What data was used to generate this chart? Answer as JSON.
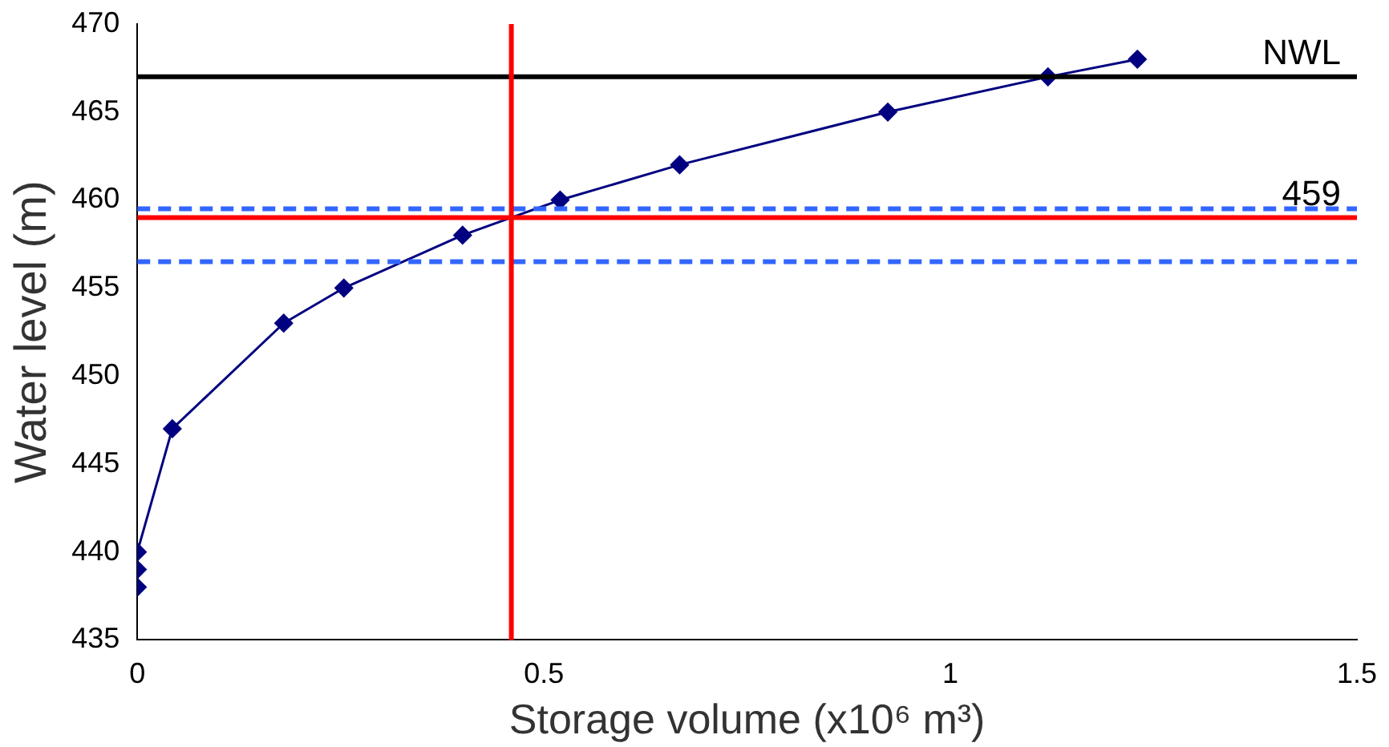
{
  "chart_data": {
    "type": "line",
    "xlabel": "Storage volume (x10⁶ m³)",
    "ylabel": "Water level (m)",
    "x": [
      0,
      0,
      0,
      0.043,
      0.18,
      0.254,
      0.4,
      0.52,
      0.667,
      0.923,
      1.12,
      1.23
    ],
    "series": [
      {
        "color": "#000080",
        "values": [
          438,
          439,
          440,
          447,
          453,
          455,
          458,
          460,
          462,
          465,
          467,
          468
        ]
      }
    ],
    "xlim": [
      0,
      1.5
    ],
    "xticks": [
      0,
      0.5,
      1,
      1.5
    ],
    "ylim": [
      435,
      470
    ],
    "yticks": [
      435,
      440,
      445,
      450,
      455,
      460,
      465,
      470
    ],
    "grid": false,
    "legend": false,
    "marker": "diamond",
    "line_style": "solid",
    "ref_lines": [
      {
        "axis": "y",
        "value": 467,
        "label": "NWL",
        "color": "#000000",
        "line_style": "solid"
      },
      {
        "axis": "y",
        "value": 459,
        "label": "459",
        "color": "#ff0000",
        "line_style": "solid"
      },
      {
        "axis": "y",
        "value": 459.5,
        "color": "#3366ff",
        "line_style": "dashed"
      },
      {
        "axis": "y",
        "value": 456.5,
        "color": "#3366ff",
        "line_style": "dashed"
      },
      {
        "axis": "x",
        "value": 0.46,
        "color": "#ff0000",
        "line_style": "solid"
      }
    ]
  }
}
